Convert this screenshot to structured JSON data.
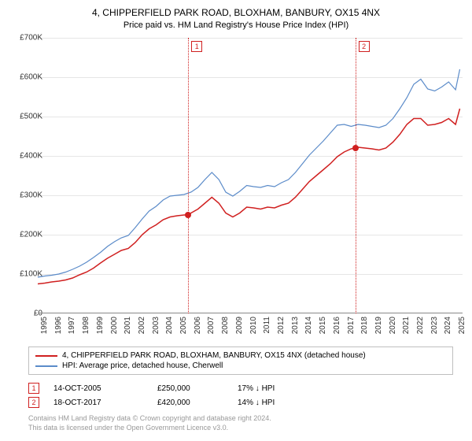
{
  "title_line1": "4, CHIPPERFIELD PARK ROAD, BLOXHAM, BANBURY, OX15 4NX",
  "title_line2": "Price paid vs. HM Land Registry's House Price Index (HPI)",
  "chart": {
    "type": "line",
    "x_min": 1995,
    "x_max": 2025.5,
    "y_min": 0,
    "y_max": 700000,
    "ytick_step": 100000,
    "ytick_labels": [
      "£0",
      "£100K",
      "£200K",
      "£300K",
      "£400K",
      "£500K",
      "£600K",
      "£700K"
    ],
    "xticks": [
      1995,
      1996,
      1997,
      1998,
      1999,
      2000,
      2001,
      2002,
      2003,
      2004,
      2005,
      2006,
      2007,
      2008,
      2009,
      2010,
      2011,
      2012,
      2013,
      2014,
      2015,
      2016,
      2017,
      2018,
      2019,
      2020,
      2021,
      2022,
      2023,
      2024,
      2025
    ],
    "background_color": "#ffffff",
    "grid_color": "#e6e6e6",
    "series": [
      {
        "name": "property",
        "label": "4, CHIPPERFIELD PARK ROAD, BLOXHAM, BANBURY, OX15 4NX (detached house)",
        "color": "#d02020",
        "width": 1.5,
        "points": [
          [
            1995,
            75000
          ],
          [
            1995.5,
            77000
          ],
          [
            1996,
            80000
          ],
          [
            1996.5,
            82000
          ],
          [
            1997,
            85000
          ],
          [
            1997.5,
            90000
          ],
          [
            1998,
            98000
          ],
          [
            1998.5,
            105000
          ],
          [
            1999,
            115000
          ],
          [
            1999.5,
            128000
          ],
          [
            2000,
            140000
          ],
          [
            2000.5,
            150000
          ],
          [
            2001,
            160000
          ],
          [
            2001.5,
            165000
          ],
          [
            2002,
            180000
          ],
          [
            2002.5,
            200000
          ],
          [
            2003,
            215000
          ],
          [
            2003.5,
            225000
          ],
          [
            2004,
            238000
          ],
          [
            2004.5,
            245000
          ],
          [
            2005,
            248000
          ],
          [
            2005.5,
            250000
          ],
          [
            2005.8,
            250000
          ],
          [
            2006,
            255000
          ],
          [
            2006.5,
            265000
          ],
          [
            2007,
            280000
          ],
          [
            2007.5,
            295000
          ],
          [
            2008,
            280000
          ],
          [
            2008.5,
            255000
          ],
          [
            2009,
            245000
          ],
          [
            2009.5,
            255000
          ],
          [
            2010,
            270000
          ],
          [
            2010.5,
            268000
          ],
          [
            2011,
            265000
          ],
          [
            2011.5,
            270000
          ],
          [
            2012,
            268000
          ],
          [
            2012.5,
            275000
          ],
          [
            2013,
            280000
          ],
          [
            2013.5,
            295000
          ],
          [
            2014,
            315000
          ],
          [
            2014.5,
            335000
          ],
          [
            2015,
            350000
          ],
          [
            2015.5,
            365000
          ],
          [
            2016,
            380000
          ],
          [
            2016.5,
            398000
          ],
          [
            2017,
            410000
          ],
          [
            2017.5,
            418000
          ],
          [
            2017.8,
            420000
          ],
          [
            2018,
            422000
          ],
          [
            2018.5,
            420000
          ],
          [
            2019,
            418000
          ],
          [
            2019.5,
            415000
          ],
          [
            2020,
            420000
          ],
          [
            2020.5,
            435000
          ],
          [
            2021,
            455000
          ],
          [
            2021.5,
            480000
          ],
          [
            2022,
            495000
          ],
          [
            2022.5,
            495000
          ],
          [
            2023,
            478000
          ],
          [
            2023.5,
            480000
          ],
          [
            2024,
            485000
          ],
          [
            2024.5,
            495000
          ],
          [
            2025,
            480000
          ],
          [
            2025.3,
            520000
          ]
        ]
      },
      {
        "name": "hpi",
        "label": "HPI: Average price, detached house, Cherwell",
        "color": "#5b8bc9",
        "width": 1.2,
        "points": [
          [
            1995,
            92000
          ],
          [
            1995.5,
            95000
          ],
          [
            1996,
            97000
          ],
          [
            1996.5,
            100000
          ],
          [
            1997,
            105000
          ],
          [
            1997.5,
            112000
          ],
          [
            1998,
            120000
          ],
          [
            1998.5,
            130000
          ],
          [
            1999,
            142000
          ],
          [
            1999.5,
            155000
          ],
          [
            2000,
            170000
          ],
          [
            2000.5,
            182000
          ],
          [
            2001,
            192000
          ],
          [
            2001.5,
            198000
          ],
          [
            2002,
            218000
          ],
          [
            2002.5,
            240000
          ],
          [
            2003,
            260000
          ],
          [
            2003.5,
            272000
          ],
          [
            2004,
            288000
          ],
          [
            2004.5,
            298000
          ],
          [
            2005,
            300000
          ],
          [
            2005.5,
            302000
          ],
          [
            2006,
            308000
          ],
          [
            2006.5,
            320000
          ],
          [
            2007,
            340000
          ],
          [
            2007.5,
            358000
          ],
          [
            2008,
            340000
          ],
          [
            2008.5,
            308000
          ],
          [
            2009,
            298000
          ],
          [
            2009.5,
            310000
          ],
          [
            2010,
            325000
          ],
          [
            2010.5,
            322000
          ],
          [
            2011,
            320000
          ],
          [
            2011.5,
            325000
          ],
          [
            2012,
            322000
          ],
          [
            2012.5,
            332000
          ],
          [
            2013,
            340000
          ],
          [
            2013.5,
            358000
          ],
          [
            2014,
            380000
          ],
          [
            2014.5,
            402000
          ],
          [
            2015,
            420000
          ],
          [
            2015.5,
            438000
          ],
          [
            2016,
            458000
          ],
          [
            2016.5,
            478000
          ],
          [
            2017,
            480000
          ],
          [
            2017.5,
            475000
          ],
          [
            2018,
            480000
          ],
          [
            2018.5,
            478000
          ],
          [
            2019,
            475000
          ],
          [
            2019.5,
            472000
          ],
          [
            2020,
            478000
          ],
          [
            2020.5,
            495000
          ],
          [
            2021,
            520000
          ],
          [
            2021.5,
            548000
          ],
          [
            2022,
            582000
          ],
          [
            2022.5,
            595000
          ],
          [
            2023,
            570000
          ],
          [
            2023.5,
            565000
          ],
          [
            2024,
            575000
          ],
          [
            2024.5,
            588000
          ],
          [
            2025,
            568000
          ],
          [
            2025.3,
            620000
          ]
        ]
      }
    ],
    "markers": [
      {
        "id": "1",
        "x": 2005.8,
        "y": 250000
      },
      {
        "id": "2",
        "x": 2017.8,
        "y": 420000
      }
    ]
  },
  "legend": {
    "items": [
      {
        "color": "#d02020",
        "label": "4, CHIPPERFIELD PARK ROAD, BLOXHAM, BANBURY, OX15 4NX (detached house)"
      },
      {
        "color": "#5b8bc9",
        "label": "HPI: Average price, detached house, Cherwell"
      }
    ]
  },
  "sales_table": {
    "rows": [
      {
        "marker": "1",
        "date": "14-OCT-2005",
        "price": "£250,000",
        "diff": "17% ↓ HPI"
      },
      {
        "marker": "2",
        "date": "18-OCT-2017",
        "price": "£420,000",
        "diff": "14% ↓ HPI"
      }
    ]
  },
  "footer_line1": "Contains HM Land Registry data © Crown copyright and database right 2024.",
  "footer_line2": "This data is licensed under the Open Government Licence v3.0."
}
